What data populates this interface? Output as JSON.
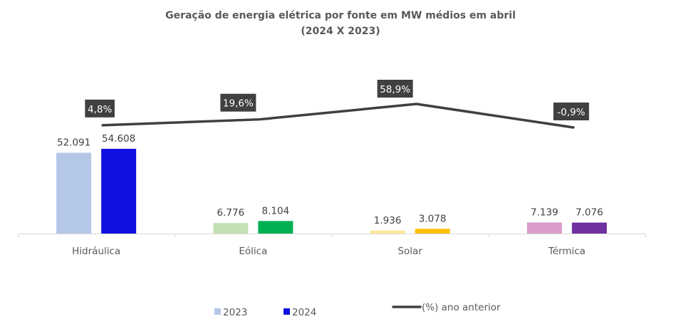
{
  "chart_data": {
    "type": "bar",
    "title": "Geração de energia elétrica por fonte em MW médios em abril",
    "subtitle": "(2024 X 2023)",
    "xlabel": "",
    "ylabel": "",
    "categories": [
      "Hidráulica",
      "Eólica",
      "Solar",
      "Térmica"
    ],
    "series": [
      {
        "name": "2023",
        "type": "bar",
        "values": [
          52091,
          6776,
          1936,
          7139
        ],
        "labels": [
          "52.091",
          "6.776",
          "1.936",
          "7.139"
        ],
        "colors": [
          "#b4c7e7",
          "#c5e0b4",
          "#ffe699",
          "#d99ccb"
        ]
      },
      {
        "name": "2024",
        "type": "bar",
        "values": [
          54608,
          8104,
          3078,
          7076
        ],
        "labels": [
          "54.608",
          "8.104",
          "3.078",
          "7.076"
        ],
        "colors": [
          "#1010e0",
          "#00b050",
          "#ffc000",
          "#7030a0"
        ]
      },
      {
        "name": "(%) ano anterior",
        "type": "line",
        "values": [
          4.8,
          19.6,
          58.9,
          -0.9
        ],
        "labels": [
          "4,8%",
          "19,6%",
          "58,9%",
          "-0,9%"
        ],
        "color": "#404040"
      }
    ],
    "legend": {
      "placement": "bottom",
      "entries": [
        {
          "label": "2023",
          "color": "#b4c7e7",
          "marker": "square"
        },
        {
          "label": "2024",
          "color": "#1010e0",
          "marker": "square"
        },
        {
          "label": "(%) ano anterior",
          "color": "#404040",
          "marker": "line"
        }
      ]
    },
    "grid": false,
    "y_axis_visible": false
  }
}
